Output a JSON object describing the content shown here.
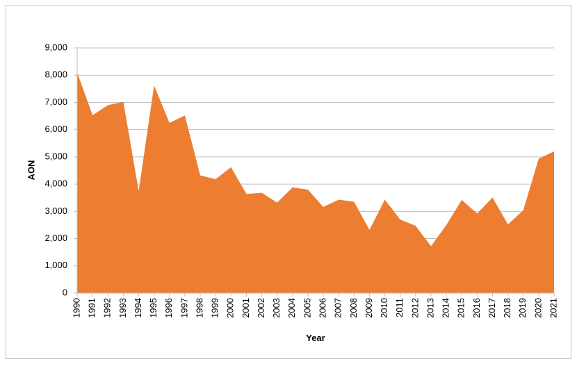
{
  "chart_data": {
    "type": "area",
    "x_label": "Year",
    "y_label": "AON",
    "color": "#ed7d31",
    "x": [
      1990,
      1991,
      1992,
      1993,
      1994,
      1995,
      1996,
      1997,
      1998,
      1999,
      2000,
      2001,
      2002,
      2003,
      2004,
      2005,
      2006,
      2007,
      2008,
      2009,
      2010,
      2011,
      2012,
      2013,
      2014,
      2015,
      2016,
      2017,
      2018,
      2019,
      2020,
      2021
    ],
    "values": [
      8100,
      6530,
      6900,
      7020,
      3750,
      7620,
      6250,
      6520,
      4320,
      4180,
      4620,
      3640,
      3680,
      3320,
      3880,
      3800,
      3160,
      3430,
      3350,
      2320,
      3430,
      2700,
      2470,
      1720,
      2500,
      3420,
      2920,
      3510,
      2520,
      3040,
      4930,
      5200
    ],
    "xlim": [
      1990,
      2021
    ],
    "ylim": [
      0,
      9000
    ],
    "yticks": [
      0,
      {
        "value": 1000,
        "label": "1,000"
      },
      {
        "value": 2000,
        "label": "2,000"
      },
      {
        "value": 3000,
        "label": "3,000"
      },
      {
        "value": 4000,
        "label": "4,000"
      },
      {
        "value": 5000,
        "label": "5,000"
      },
      {
        "value": 6000,
        "label": "6,000"
      },
      {
        "value": 7000,
        "label": "7,000"
      },
      {
        "value": 8000,
        "label": "8,000"
      },
      {
        "value": 9000,
        "label": "9,000"
      }
    ],
    "grid": true
  }
}
